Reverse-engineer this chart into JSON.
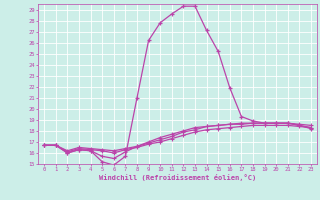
{
  "xlabel": "Windchill (Refroidissement éolien,°C)",
  "xlim": [
    -0.5,
    23.5
  ],
  "ylim": [
    15,
    29.5
  ],
  "yticks": [
    15,
    16,
    17,
    18,
    19,
    20,
    21,
    22,
    23,
    24,
    25,
    26,
    27,
    28,
    29
  ],
  "xticks": [
    0,
    1,
    2,
    3,
    4,
    5,
    6,
    7,
    8,
    9,
    10,
    11,
    12,
    13,
    14,
    15,
    16,
    17,
    18,
    19,
    20,
    21,
    22,
    23
  ],
  "bg_color": "#cceee8",
  "grid_color": "#ffffff",
  "line_color": "#bb44aa",
  "curve1_x": [
    0,
    1,
    2,
    3,
    4,
    5,
    6,
    7,
    8,
    9,
    10,
    11,
    12,
    13,
    14,
    15,
    16,
    17,
    18,
    19,
    20,
    21,
    22,
    23
  ],
  "curve1_y": [
    16.7,
    16.7,
    16.0,
    16.3,
    16.2,
    15.2,
    14.9,
    15.7,
    21.0,
    26.2,
    27.8,
    28.6,
    29.3,
    29.3,
    27.1,
    25.2,
    21.9,
    19.3,
    18.9,
    18.7,
    18.7,
    18.7,
    18.5,
    18.2
  ],
  "curve2_x": [
    0,
    1,
    2,
    3,
    4,
    5,
    6,
    7,
    8,
    9,
    10,
    11,
    12,
    13,
    14,
    15,
    16,
    17,
    18,
    19,
    20,
    21,
    22,
    23
  ],
  "curve2_y": [
    16.7,
    16.7,
    16.2,
    16.5,
    16.4,
    16.3,
    16.2,
    16.4,
    16.6,
    16.9,
    17.2,
    17.5,
    17.9,
    18.1,
    18.4,
    18.5,
    18.6,
    18.6,
    18.7,
    18.7,
    18.7,
    18.7,
    18.6,
    18.5
  ],
  "curve3_x": [
    0,
    1,
    2,
    3,
    4,
    5,
    6,
    7,
    8,
    9,
    10,
    11,
    12,
    13,
    14,
    15,
    16,
    17,
    18,
    19,
    20,
    21,
    22,
    23
  ],
  "curve3_y": [
    16.7,
    16.7,
    16.1,
    16.4,
    16.3,
    16.2,
    16.0,
    16.3,
    16.5,
    16.8,
    17.0,
    17.3,
    17.6,
    17.9,
    18.1,
    18.2,
    18.3,
    18.4,
    18.5,
    18.5,
    18.5,
    18.5,
    18.4,
    18.3
  ],
  "curve4_x": [
    0,
    1,
    2,
    3,
    4,
    5,
    6,
    7,
    8,
    9,
    10,
    11,
    12,
    13,
    14,
    15,
    16,
    17,
    18,
    19,
    20,
    21,
    22,
    23
  ],
  "curve4_y": [
    16.7,
    16.7,
    16.0,
    16.3,
    16.2,
    15.7,
    15.5,
    16.1,
    16.6,
    17.0,
    17.4,
    17.7,
    18.0,
    18.3,
    18.4,
    18.5,
    18.6,
    18.7,
    18.7,
    18.7,
    18.7,
    18.7,
    18.5,
    18.3
  ]
}
